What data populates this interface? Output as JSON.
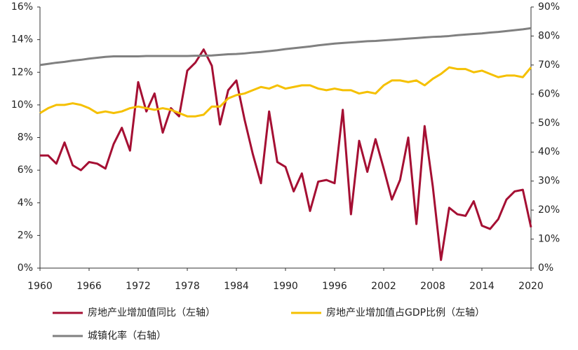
{
  "chart_data": {
    "type": "line",
    "x": [
      1960,
      1961,
      1962,
      1963,
      1964,
      1965,
      1966,
      1967,
      1968,
      1969,
      1970,
      1971,
      1972,
      1973,
      1974,
      1975,
      1976,
      1977,
      1978,
      1979,
      1980,
      1981,
      1982,
      1983,
      1984,
      1985,
      1986,
      1987,
      1988,
      1989,
      1990,
      1991,
      1992,
      1993,
      1994,
      1995,
      1996,
      1997,
      1998,
      1999,
      2000,
      2001,
      2002,
      2003,
      2004,
      2005,
      2006,
      2007,
      2008,
      2009,
      2010,
      2011,
      2012,
      2013,
      2014,
      2015,
      2016,
      2017,
      2018,
      2019,
      2020
    ],
    "series": [
      {
        "name": "房地产业增加值同比（左轴）",
        "color": "#a50f33",
        "axis": "y",
        "values": [
          6.9,
          6.9,
          6.4,
          7.7,
          6.3,
          6.0,
          6.5,
          6.4,
          6.1,
          7.6,
          8.6,
          7.2,
          11.4,
          9.6,
          10.7,
          8.3,
          9.8,
          9.3,
          12.1,
          12.6,
          13.4,
          12.4,
          8.8,
          10.9,
          11.5,
          9.1,
          7.0,
          5.2,
          9.6,
          6.5,
          6.2,
          4.7,
          5.8,
          3.5,
          5.3,
          5.4,
          5.2,
          9.7,
          3.3,
          7.8,
          5.9,
          7.9,
          6.1,
          4.2,
          5.4,
          8.0,
          2.7,
          8.7,
          5.0,
          0.5,
          3.7,
          3.3,
          3.2,
          4.1,
          2.6,
          2.4,
          3.0,
          4.2,
          4.7,
          4.8,
          2.5
        ]
      },
      {
        "name": "房地产业增加值占GDP比例（左轴）",
        "color": "#f5c000",
        "axis": "y",
        "values": [
          9.5,
          9.8,
          10.0,
          10.0,
          10.1,
          10.0,
          9.8,
          9.5,
          9.6,
          9.5,
          9.6,
          9.8,
          9.9,
          9.8,
          9.7,
          9.8,
          9.7,
          9.5,
          9.3,
          9.3,
          9.4,
          9.9,
          9.9,
          10.4,
          10.6,
          10.7,
          10.9,
          11.1,
          11.0,
          11.2,
          11.0,
          11.1,
          11.2,
          11.2,
          11.0,
          10.9,
          11.0,
          10.9,
          10.9,
          10.7,
          10.8,
          10.7,
          11.2,
          11.5,
          11.5,
          11.4,
          11.5,
          11.2,
          11.6,
          11.9,
          12.3,
          12.2,
          12.2,
          12.0,
          12.1,
          11.9,
          11.7,
          11.8,
          11.8,
          11.7,
          12.3
        ]
      },
      {
        "name": "城镇化率（右轴）",
        "color": "#808080",
        "axis": "y2",
        "values": [
          70.0,
          70.4,
          70.8,
          71.1,
          71.5,
          71.8,
          72.2,
          72.5,
          72.8,
          73.0,
          73.0,
          73.0,
          73.0,
          73.1,
          73.1,
          73.1,
          73.1,
          73.1,
          73.1,
          73.2,
          73.2,
          73.3,
          73.5,
          73.7,
          73.8,
          74.0,
          74.3,
          74.5,
          74.8,
          75.1,
          75.5,
          75.8,
          76.1,
          76.4,
          76.8,
          77.1,
          77.4,
          77.6,
          77.8,
          78.0,
          78.2,
          78.3,
          78.5,
          78.7,
          78.9,
          79.1,
          79.3,
          79.5,
          79.7,
          79.8,
          80.0,
          80.3,
          80.5,
          80.7,
          80.9,
          81.2,
          81.4,
          81.7,
          82.0,
          82.3,
          82.7
        ]
      }
    ],
    "xlim": [
      1960,
      2020
    ],
    "xticks": [
      1960,
      1966,
      1972,
      1978,
      1984,
      1990,
      1996,
      2002,
      2008,
      2014,
      2020
    ],
    "ylim": [
      0,
      16
    ],
    "yticks": [
      {
        "value": 0,
        "label": "0%"
      },
      {
        "value": 2,
        "label": "2%"
      },
      {
        "value": 4,
        "label": "4%"
      },
      {
        "value": 6,
        "label": "6%"
      },
      {
        "value": 8,
        "label": "8%"
      },
      {
        "value": 10,
        "label": "10%"
      },
      {
        "value": 12,
        "label": "12%"
      },
      {
        "value": 14,
        "label": "14%"
      },
      {
        "value": 16,
        "label": "16%"
      }
    ],
    "y2lim": [
      0,
      90
    ],
    "y2ticks": [
      {
        "value": 0,
        "label": "0%"
      },
      {
        "value": 10,
        "label": "10%"
      },
      {
        "value": 20,
        "label": "20%"
      },
      {
        "value": 30,
        "label": "30%"
      },
      {
        "value": 40,
        "label": "40%"
      },
      {
        "value": 50,
        "label": "50%"
      },
      {
        "value": 60,
        "label": "60%"
      },
      {
        "value": 70,
        "label": "70%"
      },
      {
        "value": 80,
        "label": "80%"
      },
      {
        "value": 90,
        "label": "90%"
      }
    ]
  }
}
